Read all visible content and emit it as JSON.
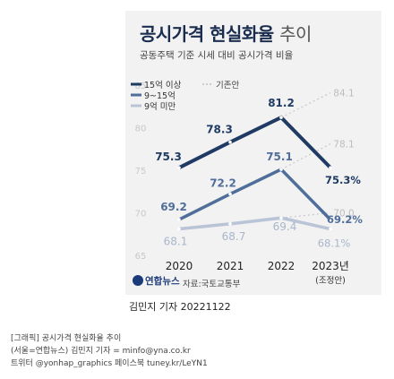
{
  "header": {
    "title_main": "공시가격 현실화율",
    "title_light": "추이",
    "subtitle": "공동주택 기준 시세 대비 공시가격 비율"
  },
  "chart_data": {
    "type": "line",
    "categories": [
      "2020",
      "2021",
      "2022",
      "2023년"
    ],
    "category_note": "(조정안)",
    "ylim": [
      65,
      85
    ],
    "y_ticks": [
      65,
      70,
      75,
      80,
      85
    ],
    "series": [
      {
        "name": "15억 이상",
        "values": [
          75.3,
          78.3,
          81.2,
          75.3
        ],
        "labels": [
          "75.3",
          "78.3",
          "81.2",
          "75.3%"
        ],
        "color": "#1f3a63",
        "dashed_note": "84.1"
      },
      {
        "name": "9~15억",
        "values": [
          69.2,
          72.2,
          75.1,
          69.2
        ],
        "labels": [
          "69.2",
          "72.2",
          "75.1",
          "69.2%"
        ],
        "color": "#4f6e99",
        "dashed_note": "78.1"
      },
      {
        "name": "9억 미만",
        "values": [
          68.1,
          68.7,
          69.4,
          68.1
        ],
        "labels": [
          "68.1",
          "68.7",
          "69.4",
          "68.1%"
        ],
        "color": "#b9c4d6",
        "dashed_note": "70.0"
      }
    ],
    "baseline_legend": "기존안",
    "baseline_2023": {
      "15억 이상": 84.1,
      "9~15억": 78.1,
      "9억 미만": 70.0
    }
  },
  "source": {
    "logo_text": "연합뉴스",
    "credit": "자료:국토교통부"
  },
  "reporter": "김민지 기자  20221122",
  "footer_lines": [
    "[그래픽] 공시가격 현실화율 추이",
    "(서울=연합뉴스) 김민지 기자 = minfo@yna.co.kr",
    "트위터 @yonhap_graphics 페이스북 tuney.kr/LeYN1"
  ],
  "colors": {
    "panel": "#f2f2f2",
    "accent": "#1f3a63"
  }
}
